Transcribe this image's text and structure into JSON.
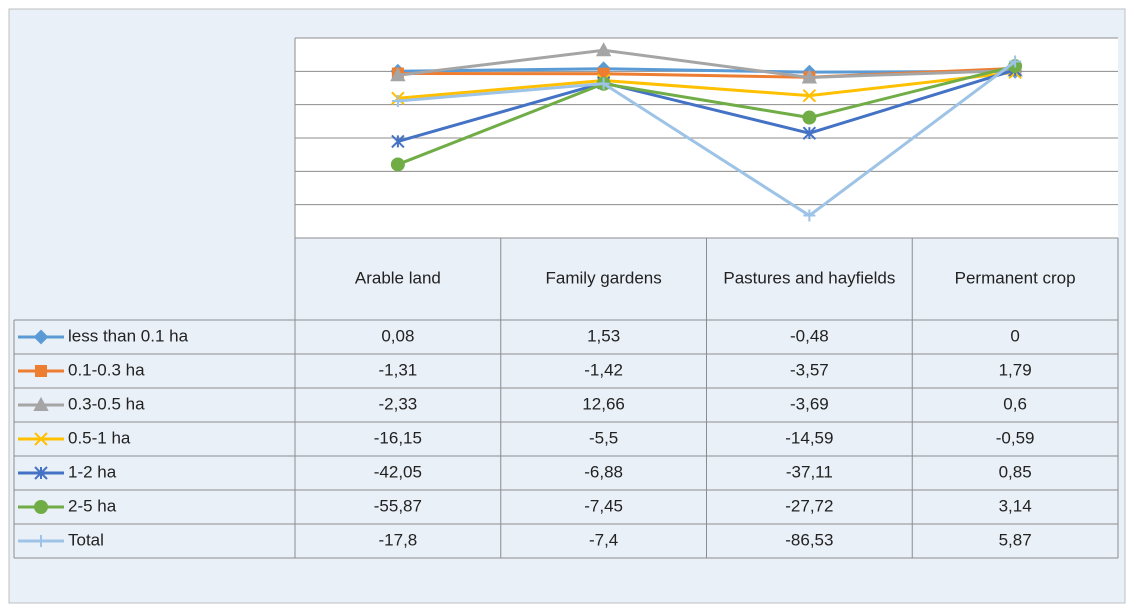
{
  "chart_data": {
    "type": "line",
    "categories": [
      "Arable land",
      "Family gardens",
      "Pastures and hayfields",
      "Permanent crop"
    ],
    "series": [
      {
        "name": "less than 0.1 ha",
        "color": "#5b9bd5",
        "marker": "diamond",
        "values": [
          0.08,
          1.53,
          -0.48,
          0
        ],
        "value_labels": [
          "0,08",
          "1,53",
          "-0,48",
          "0"
        ]
      },
      {
        "name": "0.1-0.3 ha",
        "color": "#ed7d31",
        "marker": "square",
        "values": [
          -1.31,
          -1.42,
          -3.57,
          1.79
        ],
        "value_labels": [
          "-1,31",
          "-1,42",
          "-3,57",
          "1,79"
        ]
      },
      {
        "name": "0.3-0.5 ha",
        "color": "#a5a5a5",
        "marker": "triangle",
        "values": [
          -2.33,
          12.66,
          -3.69,
          0.6
        ],
        "value_labels": [
          "-2,33",
          "12,66",
          "-3,69",
          "0,6"
        ]
      },
      {
        "name": "0.5-1 ha",
        "color": "#ffc000",
        "marker": "x",
        "values": [
          -16.15,
          -5.5,
          -14.59,
          -0.59
        ],
        "value_labels": [
          "-16,15",
          "-5,5",
          "-14,59",
          "-0,59"
        ]
      },
      {
        "name": "1-2 ha",
        "color": "#4472c4",
        "marker": "star",
        "values": [
          -42.05,
          -6.88,
          -37.11,
          0.85
        ],
        "value_labels": [
          "-42,05",
          "-6,88",
          "-37,11",
          "0,85"
        ]
      },
      {
        "name": "2-5 ha",
        "color": "#70ad47",
        "marker": "circle",
        "values": [
          -55.87,
          -7.45,
          -27.72,
          3.14
        ],
        "value_labels": [
          "-55,87",
          "-7,45",
          "-27,72",
          "3,14"
        ]
      },
      {
        "name": "Total",
        "color": "#9dc3e6",
        "marker": "plus",
        "values": [
          -17.8,
          -7.4,
          -86.53,
          5.87
        ],
        "value_labels": [
          "-17,8",
          "-7,4",
          "-86,53",
          "5,87"
        ]
      }
    ],
    "ylim": [
      -100,
      20
    ],
    "yticks": [
      -100,
      -80,
      -60,
      -40,
      -20,
      0,
      20
    ],
    "grid": true
  }
}
